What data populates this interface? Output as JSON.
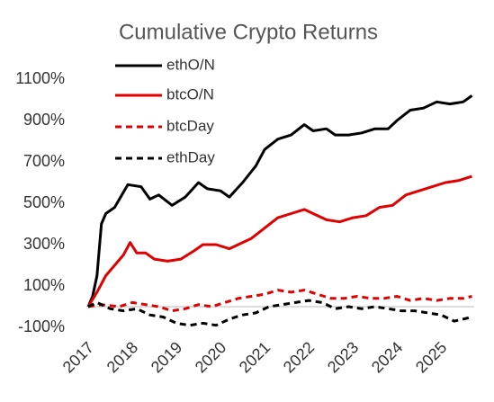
{
  "chart_data": {
    "type": "line",
    "title": "Cumulative Crypto Returns",
    "xlim": [
      2017,
      2025.75
    ],
    "xticks": [
      2017,
      2018,
      2019,
      2020,
      2021,
      2022,
      2023,
      2024,
      2025
    ],
    "ylim": [
      -100,
      1100
    ],
    "yticks": [
      {
        "value": 1100,
        "label": "1100%"
      },
      {
        "value": 900,
        "label": "900%"
      },
      {
        "value": 700,
        "label": "700%"
      },
      {
        "value": 500,
        "label": "500%"
      },
      {
        "value": 300,
        "label": "300%"
      },
      {
        "value": 100,
        "label": "100%"
      },
      {
        "value": -100,
        "label": "-100%"
      }
    ],
    "grid": false,
    "legend": "upper left",
    "series": [
      {
        "name": "ethO/N",
        "color": "#000000",
        "line_style": "solid",
        "x": [
          2017,
          2017.1,
          2017.2,
          2017.3,
          2017.4,
          2017.6,
          2017.9,
          2018.2,
          2018.4,
          2018.6,
          2018.9,
          2019.2,
          2019.5,
          2019.7,
          2020.0,
          2020.2,
          2020.5,
          2020.8,
          2021.0,
          2021.3,
          2021.6,
          2021.9,
          2022.1,
          2022.4,
          2022.6,
          2022.9,
          2023.2,
          2023.5,
          2023.8,
          2024.0,
          2024.3,
          2024.6,
          2024.9,
          2025.2,
          2025.5,
          2025.7
        ],
        "values": [
          0,
          50,
          150,
          400,
          450,
          480,
          590,
          580,
          520,
          540,
          490,
          530,
          600,
          570,
          560,
          530,
          600,
          680,
          760,
          810,
          830,
          880,
          850,
          860,
          830,
          830,
          840,
          860,
          860,
          900,
          950,
          960,
          990,
          980,
          990,
          1020
        ]
      },
      {
        "name": "btcO/N",
        "color": "#e00000",
        "line_style": "solid",
        "x": [
          2017,
          2017.2,
          2017.4,
          2017.6,
          2017.8,
          2017.95,
          2018.1,
          2018.3,
          2018.5,
          2018.8,
          2019.1,
          2019.4,
          2019.6,
          2019.9,
          2020.2,
          2020.4,
          2020.7,
          2021.0,
          2021.3,
          2021.6,
          2021.9,
          2022.1,
          2022.4,
          2022.7,
          2023.0,
          2023.3,
          2023.6,
          2023.9,
          2024.2,
          2024.5,
          2024.8,
          2025.1,
          2025.4,
          2025.7
        ],
        "values": [
          0,
          70,
          150,
          200,
          250,
          310,
          260,
          260,
          230,
          220,
          230,
          270,
          300,
          300,
          280,
          300,
          330,
          380,
          430,
          450,
          470,
          450,
          420,
          410,
          430,
          440,
          480,
          490,
          540,
          560,
          580,
          600,
          610,
          630
        ]
      },
      {
        "name": "btcDay",
        "color": "#e00000",
        "line_style": "dashed",
        "x": [
          2017,
          2017.3,
          2017.7,
          2018.0,
          2018.3,
          2018.6,
          2018.9,
          2019.2,
          2019.5,
          2019.8,
          2020.1,
          2020.4,
          2020.7,
          2021.0,
          2021.3,
          2021.6,
          2021.9,
          2022.2,
          2022.5,
          2022.8,
          2023.1,
          2023.4,
          2023.7,
          2024.0,
          2024.3,
          2024.6,
          2024.9,
          2025.2,
          2025.5,
          2025.7
        ],
        "values": [
          0,
          10,
          0,
          20,
          10,
          0,
          -20,
          -10,
          10,
          0,
          20,
          40,
          50,
          60,
          80,
          70,
          80,
          60,
          40,
          40,
          50,
          40,
          40,
          50,
          30,
          40,
          30,
          40,
          40,
          50
        ]
      },
      {
        "name": "ethDay",
        "color": "#000000",
        "line_style": "dashed",
        "x": [
          2017,
          2017.2,
          2017.5,
          2017.8,
          2018.1,
          2018.4,
          2018.7,
          2019.0,
          2019.3,
          2019.6,
          2019.9,
          2020.2,
          2020.5,
          2020.8,
          2021.1,
          2021.4,
          2021.7,
          2022.0,
          2022.3,
          2022.6,
          2022.9,
          2023.2,
          2023.5,
          2023.8,
          2024.1,
          2024.4,
          2024.7,
          2025.0,
          2025.3,
          2025.5,
          2025.7
        ],
        "values": [
          0,
          20,
          -10,
          -20,
          -10,
          -40,
          -50,
          -80,
          -90,
          -80,
          -90,
          -60,
          -40,
          -30,
          0,
          10,
          20,
          30,
          20,
          -10,
          0,
          -10,
          0,
          -10,
          -20,
          -20,
          -30,
          -40,
          -70,
          -60,
          -50
        ]
      }
    ]
  }
}
